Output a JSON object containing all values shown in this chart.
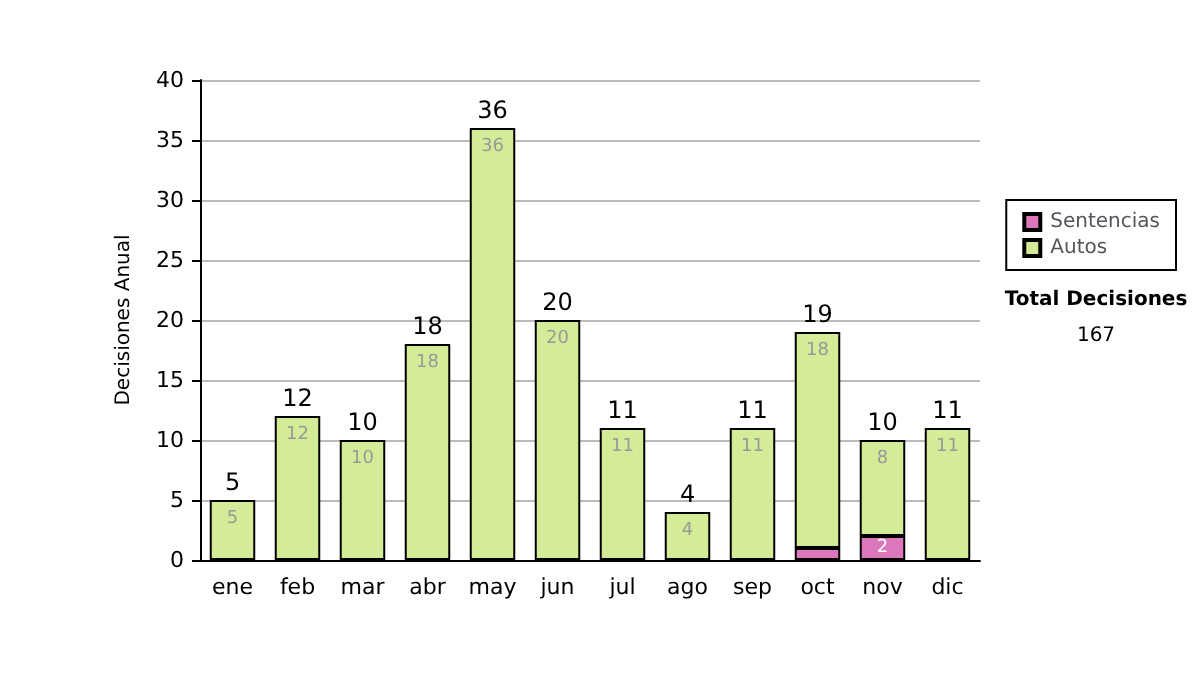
{
  "chart_data": {
    "type": "bar",
    "stacked": true,
    "ylabel": "Decisiones Anual",
    "categories": [
      "ene",
      "feb",
      "mar",
      "abr",
      "may",
      "jun",
      "jul",
      "ago",
      "sep",
      "oct",
      "nov",
      "dic"
    ],
    "series": [
      {
        "name": "Sentencias",
        "color": "#dd77bb",
        "values": [
          null,
          null,
          null,
          null,
          null,
          null,
          null,
          null,
          null,
          1,
          2,
          null
        ],
        "value_labels": [
          null,
          null,
          null,
          null,
          null,
          null,
          null,
          null,
          null,
          null,
          "2",
          null
        ]
      },
      {
        "name": "Autos",
        "color": "#d4ec98",
        "values": [
          5,
          12,
          10,
          18,
          36,
          20,
          11,
          4,
          11,
          18,
          8,
          11
        ],
        "value_labels": [
          "5",
          "12",
          "10",
          "18",
          "36",
          "20",
          "11",
          "4",
          "11",
          "18",
          "8",
          "11"
        ]
      }
    ],
    "totals": [
      "5",
      "12",
      "10",
      "18",
      "36",
      "20",
      "11",
      "4",
      "11",
      "19",
      "10",
      "11"
    ],
    "ylim": [
      0,
      40
    ],
    "yticks": [
      0,
      5,
      10,
      15,
      20,
      25,
      30,
      35,
      40
    ],
    "grid": "y",
    "legend": "right",
    "annotations": [
      "Total Decisiones",
      "167"
    ]
  }
}
